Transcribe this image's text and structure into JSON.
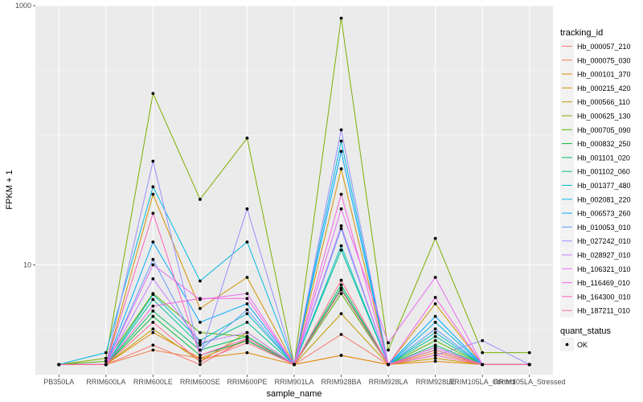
{
  "chart_data": {
    "type": "line",
    "xlabel": "sample_name",
    "ylabel": "FPKM + 1",
    "yscale": "log10",
    "ylim": [
      1.42,
      1000
    ],
    "yticks": [
      10,
      1000
    ],
    "ytick_labels": [
      "10",
      "1000"
    ],
    "grid": true,
    "legend_placement": "right",
    "categories": [
      "PB350LA",
      "RRIM600LA",
      "RRIM600LE",
      "RRIM600SE",
      "RRIM600PE",
      "RRIM901LA",
      "RRIM928BA",
      "RRIM928LA",
      "RRIM928LE",
      "RRIM105LA_Control",
      "RRIM105LA_Stressed"
    ],
    "legend_title": "tracking_id",
    "series": [
      {
        "name": "Hb_000057_210",
        "color": "#F8766D",
        "values": [
          1.7,
          1.7,
          2.4,
          1.7,
          2.7,
          1.7,
          2.9,
          1.7,
          2.3,
          1.7,
          1.7
        ]
      },
      {
        "name": "Hb_000075_030",
        "color": "#EF7F49",
        "values": [
          1.7,
          1.7,
          2.2,
          1.9,
          2.6,
          1.7,
          2.0,
          1.7,
          2.1,
          1.7,
          1.7
        ]
      },
      {
        "name": "Hb_000101_370",
        "color": "#E38900",
        "values": [
          1.7,
          1.7,
          3.0,
          1.9,
          2.1,
          1.7,
          2.0,
          1.7,
          1.8,
          1.7,
          1.7
        ]
      },
      {
        "name": "Hb_000215_420",
        "color": "#D39200",
        "values": [
          1.7,
          1.7,
          35.0,
          4.6,
          8.0,
          1.7,
          55.0,
          1.7,
          5.0,
          1.7,
          1.7
        ]
      },
      {
        "name": "Hb_000566_110",
        "color": "#C09B00",
        "values": [
          1.7,
          1.7,
          3.2,
          1.8,
          3.0,
          1.7,
          4.2,
          1.7,
          1.9,
          1.7,
          1.7
        ]
      },
      {
        "name": "Hb_000625_130",
        "color": "#7CAE00",
        "values": [
          1.7,
          1.9,
          210.0,
          32.0,
          95.0,
          1.7,
          800.0,
          2.2,
          16.0,
          2.1,
          2.1
        ]
      },
      {
        "name": "Hb_000705_090",
        "color": "#53B400",
        "values": [
          1.7,
          1.8,
          6.0,
          3.0,
          2.8,
          1.7,
          6.0,
          1.7,
          2.6,
          1.7,
          1.7
        ]
      },
      {
        "name": "Hb_000832_250",
        "color": "#00BA38",
        "values": [
          1.7,
          1.7,
          4.0,
          2.0,
          2.6,
          1.7,
          6.6,
          1.7,
          2.2,
          1.7,
          1.7
        ]
      },
      {
        "name": "Hb_001101_020",
        "color": "#00BE67",
        "values": [
          1.7,
          1.7,
          4.4,
          2.2,
          2.8,
          1.7,
          7.0,
          1.7,
          2.4,
          1.7,
          1.7
        ]
      },
      {
        "name": "Hb_001102_060",
        "color": "#00C094",
        "values": [
          1.7,
          1.7,
          5.4,
          2.4,
          3.6,
          1.7,
          13.0,
          1.7,
          2.8,
          1.7,
          1.7
        ]
      },
      {
        "name": "Hb_001377_480",
        "color": "#00BFC4",
        "values": [
          1.7,
          1.7,
          5.9,
          2.6,
          4.2,
          1.7,
          14.0,
          1.7,
          3.0,
          1.7,
          1.7
        ]
      },
      {
        "name": "Hb_002081_220",
        "color": "#00B9E3",
        "values": [
          1.7,
          2.1,
          40.0,
          7.5,
          15.0,
          1.7,
          90.0,
          1.7,
          3.6,
          1.7,
          1.7
        ]
      },
      {
        "name": "Hb_006573_260",
        "color": "#00A9FF",
        "values": [
          1.7,
          1.7,
          15.0,
          3.6,
          5.0,
          1.7,
          75.0,
          1.7,
          4.0,
          1.7,
          1.7
        ]
      },
      {
        "name": "Hb_010053_010",
        "color": "#619CFF",
        "values": [
          1.7,
          1.7,
          11.0,
          2.2,
          4.5,
          1.7,
          19.0,
          1.7,
          3.2,
          1.7,
          1.7
        ]
      },
      {
        "name": "Hb_027242_010",
        "color": "#9590FF",
        "values": [
          1.7,
          1.7,
          63.0,
          2.0,
          27.0,
          1.7,
          110.0,
          1.7,
          2.0,
          2.6,
          1.7
        ]
      },
      {
        "name": "Hb_028927_010",
        "color": "#C77CFF",
        "values": [
          1.7,
          1.7,
          7.8,
          2.5,
          3.0,
          1.7,
          20.0,
          1.7,
          2.3,
          1.7,
          1.7
        ]
      },
      {
        "name": "Hb_106321_010",
        "color": "#E76BF3",
        "values": [
          1.7,
          1.7,
          10.0,
          5.4,
          6.0,
          1.7,
          27.0,
          2.5,
          8.0,
          1.7,
          1.7
        ]
      },
      {
        "name": "Hb_116469_010",
        "color": "#F863DF",
        "values": [
          1.7,
          1.7,
          4.8,
          5.5,
          5.5,
          1.7,
          35.0,
          1.7,
          5.6,
          1.7,
          1.7
        ]
      },
      {
        "name": "Hb_164300_010",
        "color": "#FF62BC",
        "values": [
          1.7,
          1.7,
          25.0,
          2.0,
          2.7,
          1.7,
          6.4,
          1.7,
          2.0,
          1.7,
          1.7
        ]
      },
      {
        "name": "Hb_187211_010",
        "color": "#FF6C91",
        "values": [
          1.7,
          1.7,
          3.6,
          1.8,
          2.5,
          1.7,
          7.6,
          1.7,
          2.2,
          1.7,
          1.7
        ]
      }
    ],
    "shape_legend_title": "quant_status",
    "shape_legend_items": [
      "OK"
    ]
  }
}
